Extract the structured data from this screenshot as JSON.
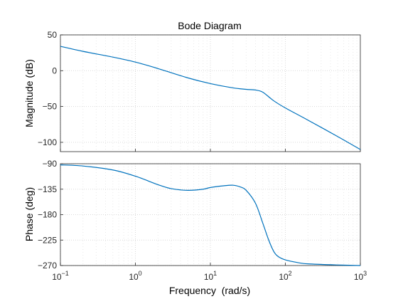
{
  "chart_data": {
    "type": "line",
    "title": "Bode Diagram",
    "xlabel": "Frequency  (rad/s)",
    "x_scale": "log",
    "xlim": [
      0.1,
      1000
    ],
    "x_ticks": [
      {
        "base": "10",
        "exp": "-1"
      },
      {
        "base": "10",
        "exp": "0"
      },
      {
        "base": "10",
        "exp": "1"
      },
      {
        "base": "10",
        "exp": "2"
      },
      {
        "base": "10",
        "exp": "3"
      }
    ],
    "grid": true,
    "line_color": "#0072bd",
    "panels": [
      {
        "name": "magnitude",
        "ylabel": "Magnitude (dB)",
        "ylim": [
          -113,
          50
        ],
        "yticks": [
          50,
          0,
          -50,
          -100
        ],
        "series": [
          {
            "x": [
              0.1,
              0.2,
              0.5,
              1,
              2,
              5,
              10,
              20,
              30,
              40,
              50,
              70,
              100,
              200,
              500,
              1000
            ],
            "y": [
              34,
              27,
              19,
              12,
              3,
              -10,
              -18,
              -24,
              -26,
              -27,
              -30,
              -42,
              -52,
              -69,
              -92,
              -110
            ]
          }
        ]
      },
      {
        "name": "phase",
        "ylabel": "Phase (deg)",
        "ylim": [
          -270,
          -90
        ],
        "yticks": [
          -90,
          -135,
          -180,
          -225,
          -270
        ],
        "series": [
          {
            "x": [
              0.1,
              0.2,
              0.5,
              1,
              2,
              3,
              5,
              8,
              10,
              15,
              20,
              25,
              30,
              40,
              50,
              60,
              70,
              80,
              100,
              150,
              200,
              500,
              1000
            ],
            "y": [
              -92,
              -94,
              -101,
              -112,
              -127,
              -134,
              -137,
              -135,
              -132,
              -129,
              -128,
              -131,
              -137,
              -160,
              -195,
              -225,
              -245,
              -254,
              -260,
              -265,
              -267,
              -269,
              -270
            ]
          }
        ]
      }
    ]
  }
}
